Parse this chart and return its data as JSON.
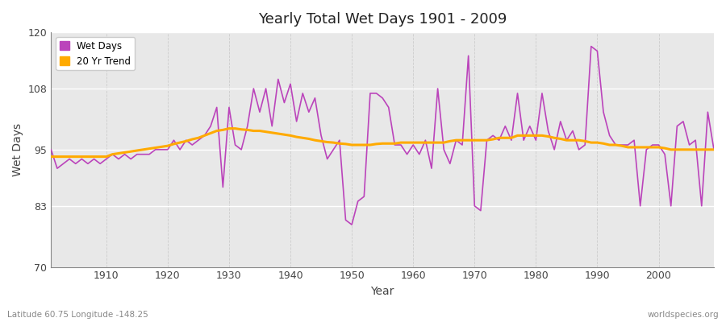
{
  "title": "Yearly Total Wet Days 1901 - 2009",
  "xlabel": "Year",
  "ylabel": "Wet Days",
  "subtitle_left": "Latitude 60.75 Longitude -148.25",
  "subtitle_right": "worldspecies.org",
  "ylim": [
    70,
    120
  ],
  "yticks": [
    70,
    83,
    95,
    108,
    120
  ],
  "xlim": [
    1901,
    2009
  ],
  "xticks": [
    1910,
    1920,
    1930,
    1940,
    1950,
    1960,
    1970,
    1980,
    1990,
    2000
  ],
  "line_color": "#bb44bb",
  "trend_color": "#ffaa00",
  "axes_bg_color": "#e8e8e8",
  "fig_bg_color": "#ffffff",
  "wet_days": {
    "1901": 95,
    "1902": 91,
    "1903": 92,
    "1904": 93,
    "1905": 92,
    "1906": 93,
    "1907": 92,
    "1908": 93,
    "1909": 92,
    "1910": 93,
    "1911": 94,
    "1912": 93,
    "1913": 94,
    "1914": 93,
    "1915": 94,
    "1916": 94,
    "1917": 94,
    "1918": 95,
    "1919": 95,
    "1920": 95,
    "1921": 97,
    "1922": 95,
    "1923": 97,
    "1924": 96,
    "1925": 97,
    "1926": 98,
    "1927": 100,
    "1928": 104,
    "1929": 87,
    "1930": 104,
    "1931": 96,
    "1932": 95,
    "1933": 100,
    "1934": 108,
    "1935": 103,
    "1936": 108,
    "1937": 100,
    "1938": 110,
    "1939": 105,
    "1940": 109,
    "1941": 101,
    "1942": 107,
    "1943": 103,
    "1944": 106,
    "1945": 98,
    "1946": 93,
    "1947": 95,
    "1948": 97,
    "1949": 80,
    "1950": 79,
    "1951": 84,
    "1952": 85,
    "1953": 107,
    "1954": 107,
    "1955": 106,
    "1956": 104,
    "1957": 96,
    "1958": 96,
    "1959": 94,
    "1960": 96,
    "1961": 94,
    "1962": 97,
    "1963": 91,
    "1964": 108,
    "1965": 95,
    "1966": 92,
    "1967": 97,
    "1968": 96,
    "1969": 115,
    "1970": 83,
    "1971": 82,
    "1972": 97,
    "1973": 98,
    "1974": 97,
    "1975": 100,
    "1976": 97,
    "1977": 107,
    "1978": 97,
    "1979": 100,
    "1980": 97,
    "1981": 107,
    "1982": 99,
    "1983": 95,
    "1984": 101,
    "1985": 97,
    "1986": 99,
    "1987": 95,
    "1988": 96,
    "1989": 117,
    "1990": 116,
    "1991": 103,
    "1992": 98,
    "1993": 96,
    "1994": 96,
    "1995": 96,
    "1996": 97,
    "1997": 83,
    "1998": 95,
    "1999": 96,
    "2000": 96,
    "2001": 94,
    "2002": 83,
    "2003": 100,
    "2004": 101,
    "2005": 96,
    "2006": 97,
    "2007": 83,
    "2008": 103,
    "2009": 95
  },
  "trend_20yr": {
    "1901": 93.5,
    "1902": 93.5,
    "1903": 93.5,
    "1904": 93.5,
    "1905": 93.5,
    "1906": 93.5,
    "1907": 93.5,
    "1908": 93.5,
    "1909": 93.5,
    "1910": 93.5,
    "1911": 94.0,
    "1912": 94.2,
    "1913": 94.4,
    "1914": 94.6,
    "1915": 94.8,
    "1916": 95.0,
    "1917": 95.2,
    "1918": 95.4,
    "1919": 95.6,
    "1920": 95.8,
    "1921": 96.2,
    "1922": 96.5,
    "1923": 96.8,
    "1924": 97.2,
    "1925": 97.5,
    "1926": 98.0,
    "1927": 98.5,
    "1928": 99.0,
    "1929": 99.2,
    "1930": 99.5,
    "1931": 99.5,
    "1932": 99.3,
    "1933": 99.2,
    "1934": 99.0,
    "1935": 99.0,
    "1936": 98.8,
    "1937": 98.6,
    "1938": 98.4,
    "1939": 98.2,
    "1940": 98.0,
    "1941": 97.7,
    "1942": 97.5,
    "1943": 97.3,
    "1944": 97.0,
    "1945": 96.8,
    "1946": 96.6,
    "1947": 96.5,
    "1948": 96.3,
    "1949": 96.2,
    "1950": 96.0,
    "1951": 96.0,
    "1952": 96.0,
    "1953": 96.0,
    "1954": 96.2,
    "1955": 96.3,
    "1956": 96.3,
    "1957": 96.3,
    "1958": 96.5,
    "1959": 96.5,
    "1960": 96.5,
    "1961": 96.5,
    "1962": 96.5,
    "1963": 96.5,
    "1964": 96.5,
    "1965": 96.5,
    "1966": 96.8,
    "1967": 97.0,
    "1968": 97.0,
    "1969": 97.0,
    "1970": 97.0,
    "1971": 97.0,
    "1972": 97.0,
    "1973": 97.2,
    "1974": 97.5,
    "1975": 97.5,
    "1976": 97.5,
    "1977": 98.0,
    "1978": 98.0,
    "1979": 98.0,
    "1980": 98.0,
    "1981": 98.0,
    "1982": 97.8,
    "1983": 97.5,
    "1984": 97.3,
    "1985": 97.0,
    "1986": 97.0,
    "1987": 97.0,
    "1988": 96.8,
    "1989": 96.5,
    "1990": 96.5,
    "1991": 96.3,
    "1992": 96.0,
    "1993": 96.0,
    "1994": 95.8,
    "1995": 95.5,
    "1996": 95.5,
    "1997": 95.5,
    "1998": 95.5,
    "1999": 95.5,
    "2000": 95.5,
    "2001": 95.3,
    "2002": 95.0,
    "2003": 95.0,
    "2004": 95.0,
    "2005": 95.0,
    "2006": 95.0,
    "2007": 95.0,
    "2008": 95.0,
    "2009": 95.0
  }
}
